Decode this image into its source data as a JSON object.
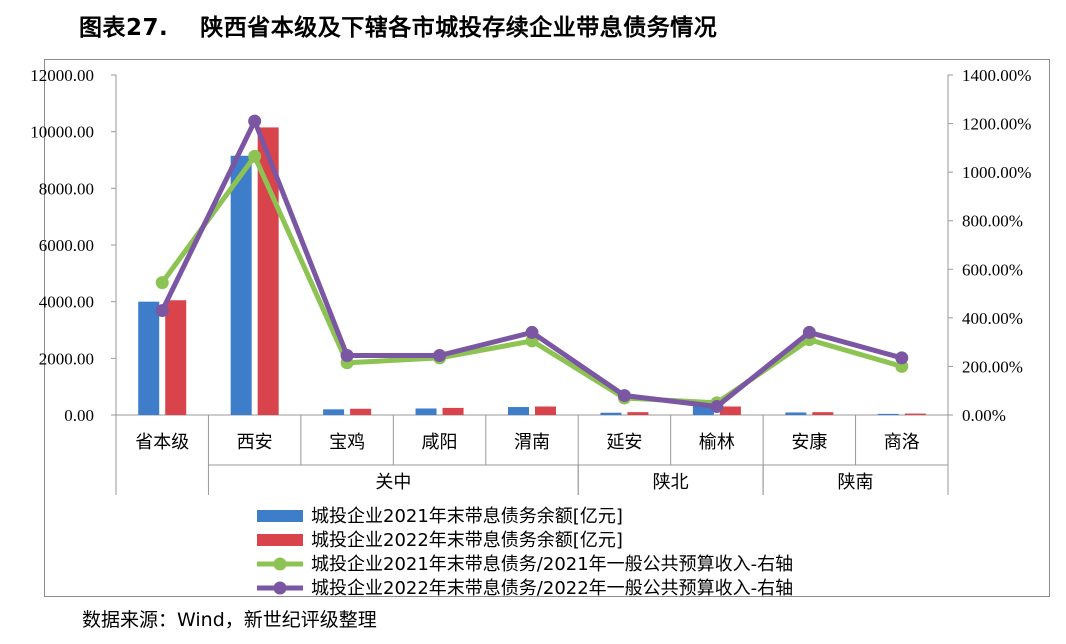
{
  "figure": {
    "title": "图表27.　 陕西省本级及下辖各市城投存续企业带息债务情况",
    "source": "数据来源：Wind，新世纪评级整理"
  },
  "chart_data": {
    "type": "bar",
    "categories": [
      "省本级",
      "西安",
      "宝鸡",
      "咸阳",
      "渭南",
      "延安",
      "榆林",
      "安康",
      "商洛"
    ],
    "groups": [
      {
        "label": "关中",
        "categories": [
          "西安",
          "宝鸡",
          "咸阳",
          "渭南"
        ]
      },
      {
        "label": "陕北",
        "categories": [
          "延安",
          "榆林"
        ]
      },
      {
        "label": "陕南",
        "categories": [
          "安康",
          "商洛"
        ]
      }
    ],
    "y_left": {
      "min": 0,
      "max": 12000,
      "step": 2000,
      "ticks": [
        "0.00",
        "2000.00",
        "4000.00",
        "6000.00",
        "8000.00",
        "10000.00",
        "12000.00"
      ]
    },
    "y_right": {
      "min": 0,
      "max": 14,
      "step": 2,
      "ticks": [
        "0.00%",
        "200.00%",
        "400.00%",
        "600.00%",
        "800.00%",
        "1000.00%",
        "1200.00%",
        "1400.00%"
      ]
    },
    "series": [
      {
        "name": "城投企业2021年末带息债务余额[亿元]",
        "kind": "bar",
        "axis": "left",
        "color": "#3d7dc9",
        "values": [
          4000,
          9150,
          200,
          230,
          280,
          80,
          430,
          90,
          40
        ]
      },
      {
        "name": "城投企业2022年末带息债务余额[亿元]",
        "kind": "bar",
        "axis": "left",
        "color": "#d9434b",
        "values": [
          4050,
          10150,
          220,
          250,
          300,
          100,
          300,
          100,
          50
        ]
      },
      {
        "name": "城投企业2021年末带息债务/2021年一般公共预算收入-右轴",
        "kind": "line",
        "axis": "right",
        "color": "#8dc352",
        "values": [
          5.45,
          10.65,
          2.15,
          2.35,
          3.05,
          0.7,
          0.5,
          3.1,
          2.0
        ]
      },
      {
        "name": "城投企业2022年末带息债务/2022年一般公共预算收入-右轴",
        "kind": "line",
        "axis": "right",
        "color": "#7b56a3",
        "values": [
          4.3,
          12.1,
          2.45,
          2.45,
          3.4,
          0.8,
          0.35,
          3.4,
          2.35
        ]
      }
    ],
    "legend": "bottom",
    "grid": false
  }
}
